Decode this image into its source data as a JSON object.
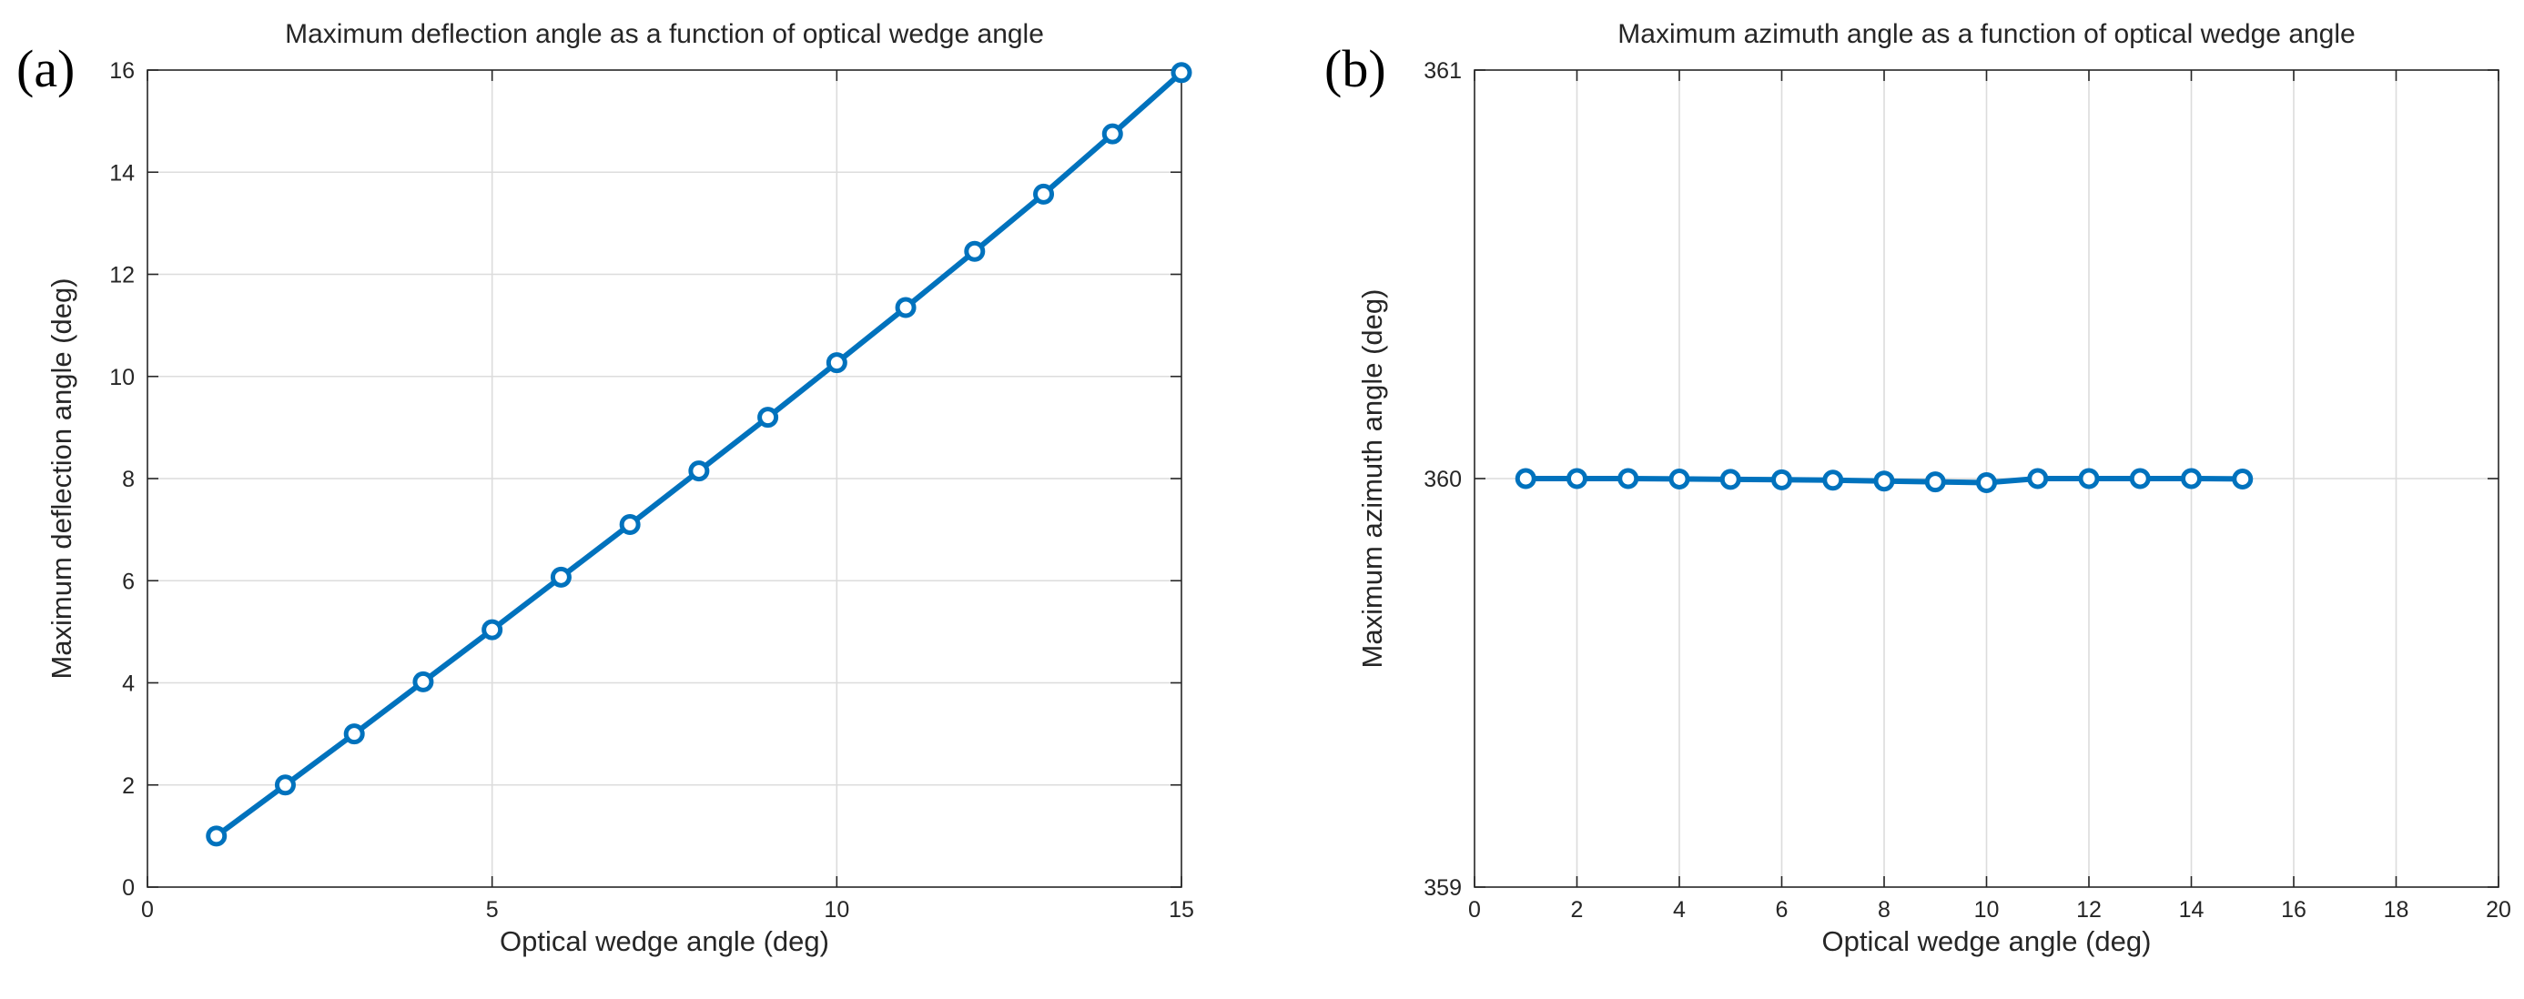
{
  "chart_data": [
    {
      "type": "line",
      "panel_label": "(a)",
      "title": "Maximum deflection angle as a function of optical wedge angle",
      "xlabel": "Optical wedge angle (deg)",
      "ylabel": "Maximum deflection angle (deg)",
      "xlim": [
        0,
        15
      ],
      "ylim": [
        0,
        16
      ],
      "xticks": [
        0,
        5,
        10,
        15
      ],
      "yticks": [
        0,
        2,
        4,
        6,
        8,
        10,
        12,
        14,
        16
      ],
      "grid": true,
      "series": [
        {
          "name": "Maximum deflection angle",
          "color": "#0072BD",
          "marker": "circle",
          "x": [
            1,
            2,
            3,
            4,
            5,
            6,
            7,
            8,
            9,
            10,
            11,
            12,
            13,
            14,
            15
          ],
          "y": [
            1.0,
            2.0,
            3.0,
            4.02,
            5.04,
            6.07,
            7.1,
            8.15,
            9.2,
            10.27,
            11.35,
            12.45,
            13.57,
            14.75,
            15.95
          ]
        }
      ]
    },
    {
      "type": "line",
      "panel_label": "(b)",
      "title": "Maximum azimuth angle as a function of optical wedge angle",
      "xlabel": "Optical wedge angle (deg)",
      "ylabel": "Maximum azimuth angle (deg)",
      "xlim": [
        0,
        20
      ],
      "ylim": [
        359,
        361
      ],
      "xticks": [
        0,
        2,
        4,
        6,
        8,
        10,
        12,
        14,
        16,
        18,
        20
      ],
      "yticks": [
        359,
        360,
        361
      ],
      "grid": true,
      "series": [
        {
          "name": "Maximum azimuth angle",
          "color": "#0072BD",
          "marker": "circle",
          "x": [
            1,
            2,
            3,
            4,
            5,
            6,
            7,
            8,
            9,
            10,
            11,
            12,
            13,
            14,
            15
          ],
          "y": [
            360.0,
            360.0,
            360.0,
            359.999,
            359.998,
            359.997,
            359.996,
            359.994,
            359.992,
            359.99,
            360.0,
            360.0,
            360.0,
            360.0,
            359.999
          ]
        }
      ]
    }
  ]
}
